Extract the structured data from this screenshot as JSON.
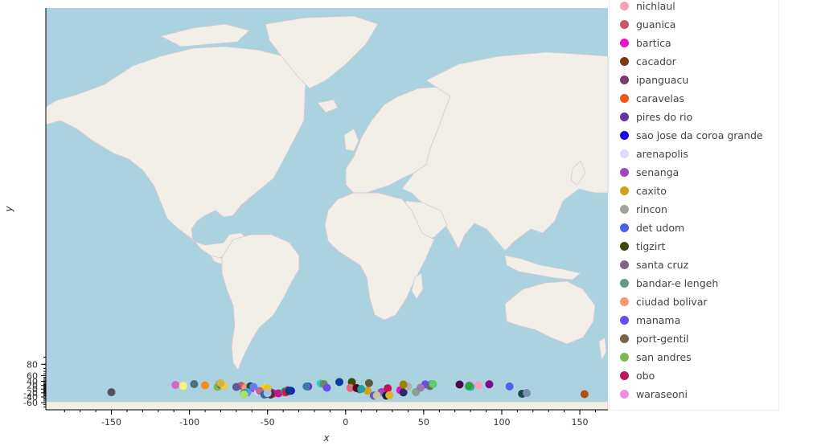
{
  "chart_data": {
    "type": "scatter",
    "title": "",
    "xlabel": "x",
    "ylabel": "y",
    "xlim": [
      -192,
      168
    ],
    "ylim": [
      -75,
      90
    ],
    "xticks": [
      -150,
      -100,
      -50,
      0,
      50,
      100,
      150
    ],
    "yticks": [
      -60,
      -40,
      -20,
      0,
      20,
      40,
      60,
      80
    ],
    "background": "world map tiles",
    "legend_position": "right",
    "series": [
      {
        "name": "nichlaul",
        "color": "#f7a1b6",
        "points": [
          [
            85,
            21
          ]
        ]
      },
      {
        "name": "guanica",
        "color": "#cf5468",
        "points": [
          [
            -67,
            18
          ]
        ]
      },
      {
        "name": "bartica",
        "color": "#e814c8",
        "points": [
          [
            -59,
            6
          ],
          [
            -46,
            -23
          ],
          [
            35,
            -6
          ]
        ]
      },
      {
        "name": "cacador",
        "color": "#7f3a12",
        "points": [
          [
            -51,
            -27
          ]
        ]
      },
      {
        "name": "ipanguacu",
        "color": "#7a3a6e",
        "points": [
          [
            -37,
            -6
          ]
        ]
      },
      {
        "name": "caravelas",
        "color": "#f05519",
        "points": [
          [
            -39,
            -18
          ]
        ]
      },
      {
        "name": "pires do rio",
        "color": "#6035a0",
        "points": [
          [
            -48,
            -17
          ]
        ]
      },
      {
        "name": "sao jose da coroa grande",
        "color": "#1508ec",
        "points": [
          [
            -35,
            -9
          ]
        ]
      },
      {
        "name": "arenapolis",
        "color": "#dcdcf8",
        "points": [
          [
            -56,
            -14
          ]
        ]
      },
      {
        "name": "senanga",
        "color": "#a445bd",
        "points": [
          [
            23,
            -16
          ]
        ]
      },
      {
        "name": "caxito",
        "color": "#d4a017",
        "points": [
          [
            14,
            -9
          ]
        ]
      },
      {
        "name": "rincon",
        "color": "#9ea49a",
        "points": [
          [
            -81,
            27
          ]
        ]
      },
      {
        "name": "det udom",
        "color": "#4a63ee",
        "points": [
          [
            105,
            15
          ]
        ]
      },
      {
        "name": "tigzirt",
        "color": "#3c4a0c",
        "points": [
          [
            4,
            37
          ]
        ]
      },
      {
        "name": "santa cruz",
        "color": "#7e6580",
        "points": [
          [
            -63,
            -18
          ]
        ]
      },
      {
        "name": "bandar-e lengeh",
        "color": "#5e9a8a",
        "points": [
          [
            55,
            27
          ]
        ]
      },
      {
        "name": "ciudad bolivar",
        "color": "#f49a6c",
        "points": [
          [
            -64,
            8
          ]
        ]
      },
      {
        "name": "manama",
        "color": "#6a4cf2",
        "points": [
          [
            51,
            26
          ]
        ]
      },
      {
        "name": "port-gentil",
        "color": "#7a6548",
        "points": [
          [
            9,
            -1
          ]
        ]
      },
      {
        "name": "san andres",
        "color": "#7eb84e",
        "points": [
          [
            -82,
            12
          ]
        ]
      },
      {
        "name": "obo",
        "color": "#c2105a",
        "points": [
          [
            27,
            5
          ]
        ]
      },
      {
        "name": "waraseoni",
        "color": "#f28ce8",
        "points": [
          [
            80,
            22
          ]
        ]
      },
      {
        "name": "",
        "color": "#585060",
        "points": [
          [
            -150,
            -17
          ]
        ]
      },
      {
        "name": "",
        "color": "#d565c6",
        "points": [
          [
            -109,
            23
          ]
        ]
      },
      {
        "name": "",
        "color": "#f5f57a",
        "points": [
          [
            -104,
            18
          ]
        ]
      },
      {
        "name": "",
        "color": "#4c6e82",
        "points": [
          [
            -97,
            27
          ]
        ]
      },
      {
        "name": "",
        "color": "#f28a1e",
        "points": [
          [
            -90,
            21
          ]
        ]
      },
      {
        "name": "",
        "color": "#111111",
        "points": [
          [
            -80,
            27
          ]
        ]
      },
      {
        "name": "",
        "color": "#1c7a3a",
        "points": [
          [
            -80,
            25
          ]
        ]
      },
      {
        "name": "",
        "color": "#ebc94a",
        "points": [
          [
            -78,
            18
          ]
        ]
      },
      {
        "name": "",
        "color": "#5a5a9e",
        "points": [
          [
            -70,
            12
          ]
        ]
      },
      {
        "name": "",
        "color": "#d4b43a",
        "points": [
          [
            -80,
            31
          ]
        ]
      },
      {
        "name": "",
        "color": "#0e5a3a",
        "points": [
          [
            -61,
            16
          ]
        ]
      },
      {
        "name": "",
        "color": "#6a78f0",
        "points": [
          [
            -59,
            13
          ]
        ]
      },
      {
        "name": "",
        "color": "#ffd700",
        "points": [
          [
            -52,
            5
          ]
        ]
      },
      {
        "name": "",
        "color": "#f0c020",
        "points": [
          [
            -50,
            4
          ]
        ]
      },
      {
        "name": "",
        "color": "#c06a8a",
        "points": [
          [
            -55,
            -10
          ]
        ]
      },
      {
        "name": "",
        "color": "#48a0e8",
        "points": [
          [
            -63,
            -16
          ]
        ]
      },
      {
        "name": "",
        "color": "#1a8a70",
        "points": [
          [
            -65,
            -23
          ]
        ]
      },
      {
        "name": "",
        "color": "#a8e06a",
        "points": [
          [
            -65,
            -28
          ]
        ]
      },
      {
        "name": "",
        "color": "#2a6e9e",
        "points": [
          [
            -52,
            -29
          ]
        ]
      },
      {
        "name": "",
        "color": "#5a2a1e",
        "points": [
          [
            -48,
            -29
          ]
        ]
      },
      {
        "name": "",
        "color": "#aac0e8",
        "points": [
          [
            -50,
            -22
          ]
        ]
      },
      {
        "name": "",
        "color": "#c71585",
        "points": [
          [
            -43,
            -23
          ]
        ]
      },
      {
        "name": "",
        "color": "#2a9a6a",
        "points": [
          [
            -39,
            -13
          ]
        ]
      },
      {
        "name": "",
        "color": "#c2204a",
        "points": [
          [
            -38,
            -16
          ]
        ]
      },
      {
        "name": "",
        "color": "#0a3a8a",
        "points": [
          [
            -36,
            -10
          ]
        ]
      },
      {
        "name": "",
        "color": "#7020e0",
        "points": [
          [
            -24,
            15
          ]
        ]
      },
      {
        "name": "",
        "color": "#3a7aa0",
        "points": [
          [
            -25,
            15
          ]
        ]
      },
      {
        "name": "",
        "color": "#2ad0c0",
        "points": [
          [
            -16,
            30
          ]
        ]
      },
      {
        "name": "",
        "color": "#6a8a5a",
        "points": [
          [
            -14,
            28
          ]
        ]
      },
      {
        "name": "",
        "color": "#6a4cf2",
        "points": [
          [
            -12,
            8
          ]
        ]
      },
      {
        "name": "",
        "color": "#0b3aa0",
        "points": [
          [
            -4,
            37
          ]
        ]
      },
      {
        "name": "",
        "color": "#5a5a3a",
        "points": [
          [
            15,
            32
          ]
        ]
      },
      {
        "name": "",
        "color": "#e06a7a",
        "points": [
          [
            3,
            7
          ]
        ]
      },
      {
        "name": "",
        "color": "#4a0a1e",
        "points": [
          [
            7,
            6
          ]
        ]
      },
      {
        "name": "",
        "color": "#20a0a0",
        "points": [
          [
            10,
            1
          ]
        ]
      },
      {
        "name": "",
        "color": "#2a2a6a",
        "points": [
          [
            37,
            -18
          ]
        ]
      },
      {
        "name": "",
        "color": "#a06a9a",
        "points": [
          [
            19,
            -34
          ]
        ]
      },
      {
        "name": "",
        "color": "#1a1a4a",
        "points": [
          [
            26,
            -34
          ]
        ]
      },
      {
        "name": "",
        "color": "#6a5ac0",
        "points": [
          [
            18,
            -34
          ]
        ]
      },
      {
        "name": "",
        "color": "#c8c8a0",
        "points": [
          [
            20,
            -34
          ]
        ]
      },
      {
        "name": "",
        "color": "#e0b020",
        "points": [
          [
            28,
            -32
          ]
        ]
      },
      {
        "name": "",
        "color": "#8aa090",
        "points": [
          [
            45,
            -16
          ]
        ]
      },
      {
        "name": "",
        "color": "#b0b0b0",
        "points": [
          [
            40,
            14
          ]
        ]
      },
      {
        "name": "",
        "color": "#a08000",
        "points": [
          [
            37,
            25
          ]
        ]
      },
      {
        "name": "",
        "color": "#a07ab0",
        "points": [
          [
            48,
            8
          ]
        ]
      },
      {
        "name": "",
        "color": "#6a6a6a",
        "points": [
          [
            54,
            17
          ]
        ]
      },
      {
        "name": "",
        "color": "#5ad06a",
        "points": [
          [
            56,
            27
          ]
        ]
      },
      {
        "name": "",
        "color": "#4a0a4a",
        "points": [
          [
            73,
            25
          ]
        ]
      },
      {
        "name": "",
        "color": "#2aa0c0",
        "points": [
          [
            80,
            12
          ]
        ]
      },
      {
        "name": "",
        "color": "#30d0b0",
        "points": [
          [
            79,
            12
          ]
        ]
      },
      {
        "name": "",
        "color": "#30a040",
        "points": [
          [
            79,
            18
          ]
        ]
      },
      {
        "name": "",
        "color": "#7a0a8a",
        "points": [
          [
            92,
            26
          ]
        ]
      },
      {
        "name": "",
        "color": "#1a4a4a",
        "points": [
          [
            113,
            -25
          ]
        ]
      },
      {
        "name": "",
        "color": "#7a90b0",
        "points": [
          [
            116,
            -21
          ]
        ]
      },
      {
        "name": "",
        "color": "#b05010",
        "points": [
          [
            153,
            -27
          ]
        ]
      }
    ]
  }
}
